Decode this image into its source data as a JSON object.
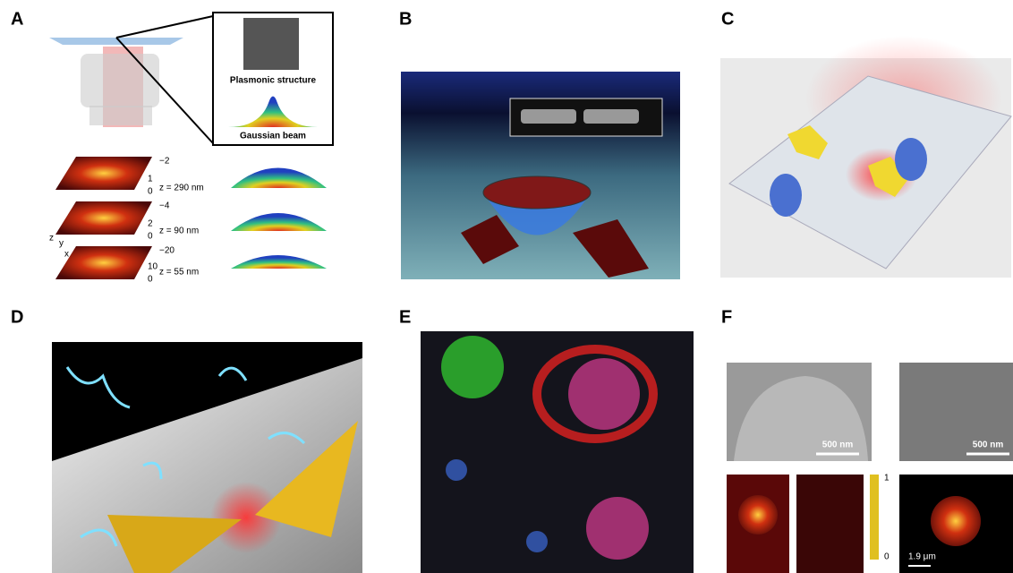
{
  "panels": {
    "a": {
      "label": "A",
      "structure_label": "Plasmonic structure",
      "beam_label": "Gaussian beam",
      "maps": [
        {
          "top": "−2",
          "mid": "1",
          "bottom": "0",
          "z": "z = 290 nm"
        },
        {
          "top": "−4",
          "mid": "2",
          "bottom": "0",
          "z": "z = 90 nm"
        },
        {
          "top": "−20",
          "mid": "10",
          "bottom": "0",
          "z": "z = 55 nm"
        }
      ],
      "axes": [
        "z",
        "y",
        "x"
      ]
    },
    "b": {
      "label": "B"
    },
    "c": {
      "label": "C"
    },
    "d": {
      "label": "D"
    },
    "e": {
      "label": "E"
    },
    "f": {
      "label": "F",
      "scale_bars": [
        "500 nm",
        "500 nm",
        "1.9 μm"
      ],
      "colorbar": [
        "1",
        "0"
      ]
    }
  }
}
